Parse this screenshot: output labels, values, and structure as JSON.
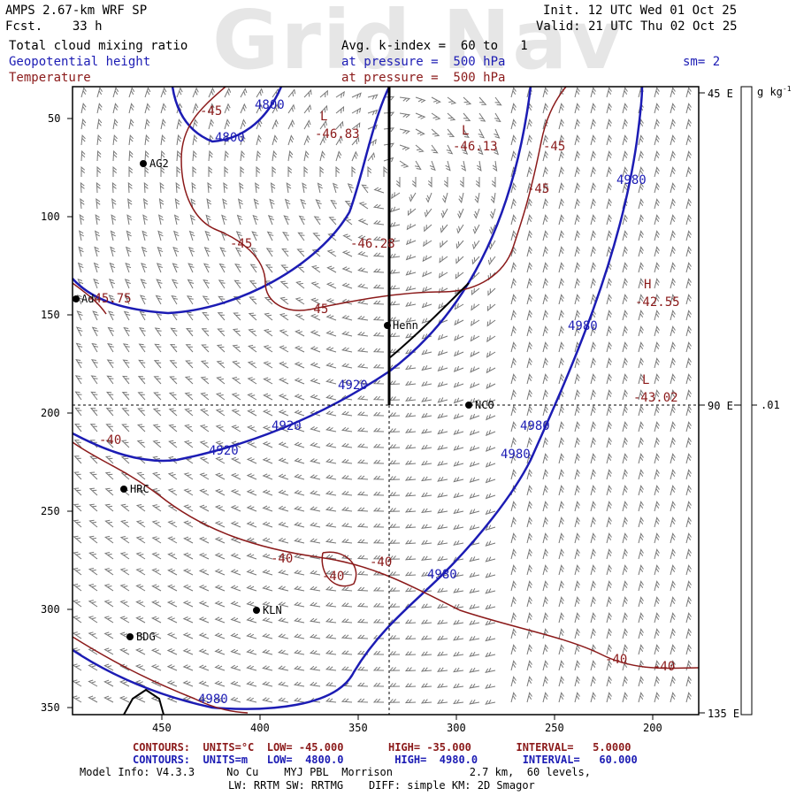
{
  "header": {
    "model": "AMPS 2.67-km WRF SP",
    "forecast": "Fcst.    33 h",
    "init": "Init. 12 UTC Wed 01 Oct 25",
    "valid": "Valid: 21 UTC Thu 02 Oct 25",
    "watermark": "Grid Nav",
    "field1": "Total cloud mixing ratio",
    "field1_desc": "Avg. k-index =  60 to   1",
    "field2": "Geopotential height",
    "field2_desc": "at pressure =  500 hPa",
    "field3": "Temperature",
    "field3_desc": "at pressure =  500 hPa",
    "smoothing": "sm= 2"
  },
  "colors": {
    "height": "#1c1cb4",
    "temperature": "#8b1a1a",
    "frame": "#000000"
  },
  "axes": {
    "x_ticks": [
      "450",
      "400",
      "350",
      "300",
      "250",
      "200"
    ],
    "y_ticks": [
      "50",
      "100",
      "150",
      "200",
      "250",
      "300",
      "350"
    ],
    "right_labels": [
      "45 E",
      "90 E",
      "135 E"
    ],
    "colorbar_unit": "g kg",
    "colorbar_unit_exp": "-1",
    "colorbar_value": ".01"
  },
  "stations": [
    {
      "name": "AG2"
    },
    {
      "name": "Ad"
    },
    {
      "name": "Henn"
    },
    {
      "name": "NC0"
    },
    {
      "name": "HRC"
    },
    {
      "name": "KLN"
    },
    {
      "name": "BDG"
    }
  ],
  "height_labels": [
    "4800",
    "4800",
    "4980",
    "4980",
    "4920",
    "4920",
    "4920",
    "4980",
    "4980",
    "4980",
    "4980"
  ],
  "temperature_labels": [
    "-45",
    "-46.83",
    "-46.13",
    "-45",
    "-45",
    "-45",
    "-46.28",
    "-45",
    "-42.55",
    "-43.02",
    "-40",
    "-40",
    "-40",
    "-40",
    "-40",
    "-40",
    "-45.75"
  ],
  "extrema": {
    "low_marks": [
      "L",
      "L",
      "L"
    ],
    "high_marks": [
      "H"
    ]
  },
  "footer": {
    "temp_contours": "CONTOURS:  UNITS=°C  LOW= -45.000       HIGH= -35.000       INTERVAL=   5.0000",
    "height_contours": "CONTOURS:  UNITS=m   LOW=  4800.0        HIGH=  4980.0       INTERVAL=   60.000",
    "model_info": "Model Info: V4.3.3     No Cu    MYJ PBL  Morrison            2.7 km,  60 levels,",
    "physics": "LW: RRTM SW: RRTMG    DIFF: simple KM: 2D Smagor"
  }
}
